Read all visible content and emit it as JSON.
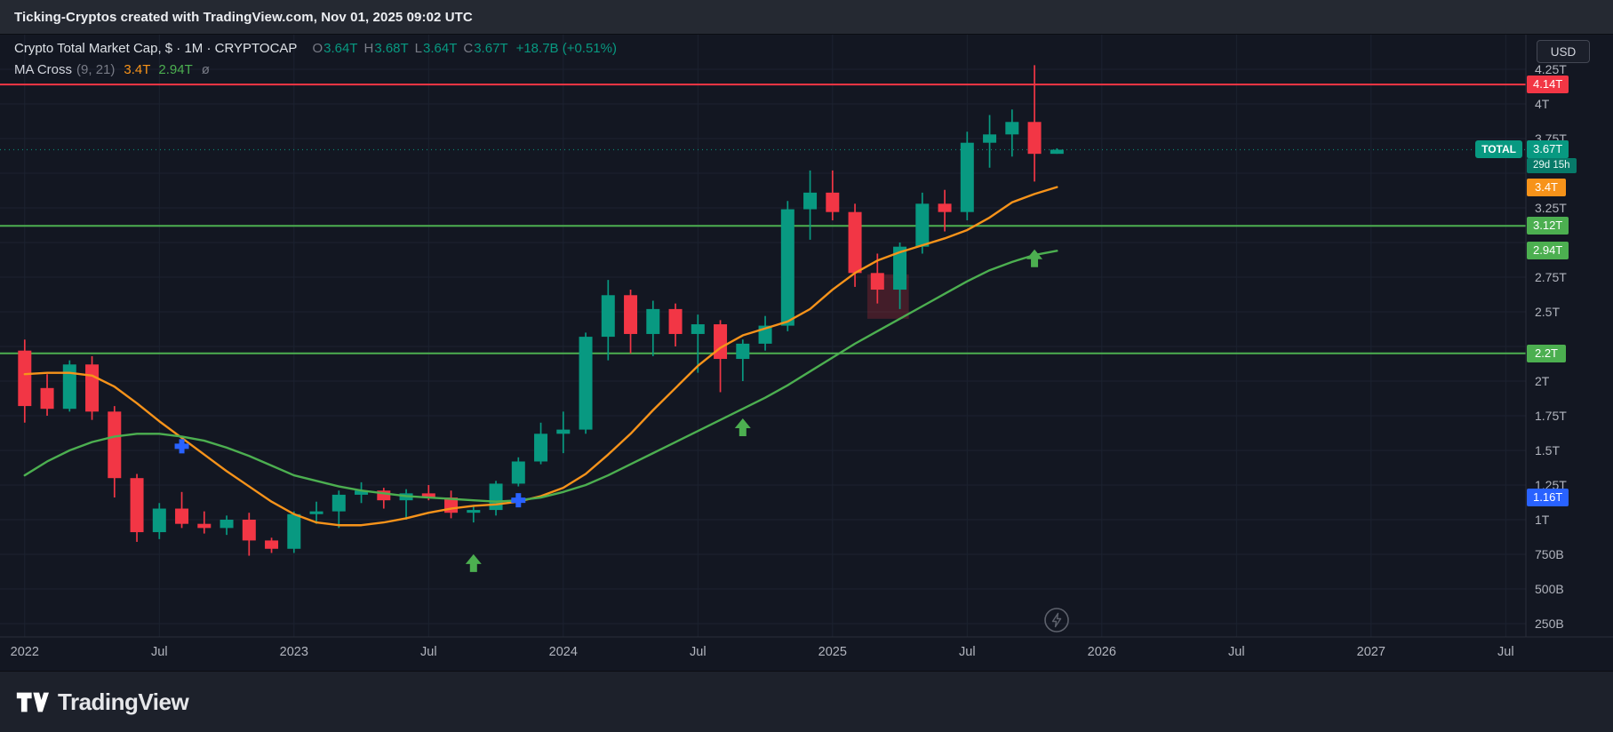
{
  "top_bar": {
    "text": "Ticking-Cryptos created with TradingView.com, Nov 01, 2025 09:02 UTC"
  },
  "bottom_bar": {
    "brand": "TradingView"
  },
  "toolbar": {
    "currency_button": "USD"
  },
  "header": {
    "title": "Crypto Total Market Cap, $ · 1M · CRYPTOCAP",
    "ohlc": {
      "o_key": "O",
      "o": "3.64T",
      "h_key": "H",
      "h": "3.68T",
      "l_key": "L",
      "l": "3.64T",
      "c_key": "C",
      "c": "3.67T",
      "change": "+18.7B (+0.51%)"
    },
    "indicator": {
      "name": "MA Cross",
      "params": "(9, 21)",
      "ma_fast": "3.4T",
      "ma_slow": "2.94T",
      "menu": "ø"
    }
  },
  "icons": {
    "bottom_left": "tradingview-logo",
    "plot_button": "lightning-bolt-icon"
  },
  "colors": {
    "background": "#131722",
    "up": "#089981",
    "down": "#f23645",
    "ma_fast": "#f7931a",
    "ma_slow": "#4caf50",
    "level_red": "#f23645",
    "level_green": "#4caf50",
    "current_price": "#089981",
    "marker_cross": "#2962ff",
    "marker_arrow": "#4caf50",
    "axis_text": "#b2b5be",
    "axis_border": "#2a2e39"
  },
  "chart_data": {
    "type": "candlestick",
    "symbol": "CRYPTOCAP TOTAL",
    "interval": "1M",
    "unit": "trillions USD",
    "ylim": [
      0.1,
      4.4
    ],
    "legend_position": "top-left",
    "candle_format": [
      "month",
      "open",
      "high",
      "low",
      "close"
    ],
    "candles": [
      [
        "2022-01",
        2.22,
        2.3,
        1.7,
        1.82
      ],
      [
        "2022-02",
        1.95,
        2.05,
        1.75,
        1.8
      ],
      [
        "2022-03",
        1.8,
        2.15,
        1.78,
        2.12
      ],
      [
        "2022-04",
        2.12,
        2.18,
        1.72,
        1.78
      ],
      [
        "2022-05",
        1.78,
        1.82,
        1.16,
        1.3
      ],
      [
        "2022-06",
        1.3,
        1.33,
        0.84,
        0.91
      ],
      [
        "2022-07",
        0.91,
        1.12,
        0.86,
        1.08
      ],
      [
        "2022-08",
        1.08,
        1.2,
        0.94,
        0.97
      ],
      [
        "2022-09",
        0.97,
        1.06,
        0.9,
        0.94
      ],
      [
        "2022-10",
        0.94,
        1.03,
        0.89,
        1.0
      ],
      [
        "2022-11",
        1.0,
        1.05,
        0.74,
        0.85
      ],
      [
        "2022-12",
        0.85,
        0.87,
        0.76,
        0.79
      ],
      [
        "2023-01",
        0.79,
        1.06,
        0.76,
        1.04
      ],
      [
        "2023-02",
        1.04,
        1.13,
        0.97,
        1.06
      ],
      [
        "2023-03",
        1.06,
        1.21,
        0.94,
        1.18
      ],
      [
        "2023-04",
        1.18,
        1.27,
        1.12,
        1.21
      ],
      [
        "2023-05",
        1.21,
        1.23,
        1.08,
        1.14
      ],
      [
        "2023-06",
        1.14,
        1.22,
        1.0,
        1.19
      ],
      [
        "2023-07",
        1.19,
        1.25,
        1.14,
        1.16
      ],
      [
        "2023-08",
        1.16,
        1.21,
        1.01,
        1.05
      ],
      [
        "2023-09",
        1.05,
        1.1,
        0.98,
        1.07
      ],
      [
        "2023-10",
        1.07,
        1.28,
        1.03,
        1.26
      ],
      [
        "2023-11",
        1.26,
        1.45,
        1.24,
        1.42
      ],
      [
        "2023-12",
        1.42,
        1.7,
        1.4,
        1.62
      ],
      [
        "2024-01",
        1.62,
        1.78,
        1.48,
        1.65
      ],
      [
        "2024-02",
        1.65,
        2.35,
        1.62,
        2.32
      ],
      [
        "2024-03",
        2.32,
        2.73,
        2.15,
        2.62
      ],
      [
        "2024-04",
        2.62,
        2.66,
        2.2,
        2.34
      ],
      [
        "2024-05",
        2.34,
        2.58,
        2.18,
        2.52
      ],
      [
        "2024-06",
        2.52,
        2.56,
        2.25,
        2.34
      ],
      [
        "2024-07",
        2.34,
        2.48,
        2.06,
        2.41
      ],
      [
        "2024-08",
        2.41,
        2.44,
        1.92,
        2.16
      ],
      [
        "2024-09",
        2.16,
        2.3,
        2.0,
        2.27
      ],
      [
        "2024-10",
        2.27,
        2.47,
        2.22,
        2.4
      ],
      [
        "2024-11",
        2.4,
        3.3,
        2.36,
        3.24
      ],
      [
        "2024-12",
        3.24,
        3.52,
        3.02,
        3.36
      ],
      [
        "2025-01",
        3.36,
        3.52,
        3.16,
        3.22
      ],
      [
        "2025-02",
        3.22,
        3.28,
        2.68,
        2.78
      ],
      [
        "2025-03",
        2.78,
        2.92,
        2.56,
        2.66
      ],
      [
        "2025-04",
        2.66,
        3.0,
        2.52,
        2.97
      ],
      [
        "2025-05",
        2.97,
        3.36,
        2.92,
        3.28
      ],
      [
        "2025-06",
        3.28,
        3.38,
        3.08,
        3.22
      ],
      [
        "2025-07",
        3.22,
        3.8,
        3.16,
        3.72
      ],
      [
        "2025-08",
        3.72,
        3.92,
        3.54,
        3.78
      ],
      [
        "2025-09",
        3.78,
        3.96,
        3.62,
        3.87
      ],
      [
        "2025-10",
        3.87,
        4.28,
        3.44,
        3.64
      ],
      [
        "2025-11",
        3.64,
        3.68,
        3.64,
        3.67
      ]
    ],
    "series": [
      {
        "name": "MA 9",
        "color": "#f7931a",
        "values": [
          2.05,
          2.06,
          2.06,
          2.04,
          1.96,
          1.84,
          1.71,
          1.59,
          1.47,
          1.35,
          1.24,
          1.13,
          1.04,
          0.98,
          0.96,
          0.96,
          0.98,
          1.01,
          1.05,
          1.08,
          1.1,
          1.11,
          1.13,
          1.17,
          1.23,
          1.33,
          1.47,
          1.62,
          1.79,
          1.95,
          2.11,
          2.24,
          2.33,
          2.38,
          2.43,
          2.52,
          2.66,
          2.78,
          2.87,
          2.93,
          2.98,
          3.03,
          3.09,
          3.18,
          3.29,
          3.35,
          3.4
        ]
      },
      {
        "name": "MA 21",
        "color": "#4caf50",
        "values": [
          1.32,
          1.42,
          1.5,
          1.56,
          1.6,
          1.62,
          1.62,
          1.6,
          1.57,
          1.52,
          1.46,
          1.39,
          1.32,
          1.28,
          1.24,
          1.21,
          1.19,
          1.17,
          1.16,
          1.15,
          1.14,
          1.13,
          1.14,
          1.16,
          1.2,
          1.25,
          1.32,
          1.4,
          1.48,
          1.56,
          1.64,
          1.72,
          1.8,
          1.88,
          1.97,
          2.07,
          2.17,
          2.27,
          2.36,
          2.45,
          2.54,
          2.63,
          2.72,
          2.8,
          2.86,
          2.91,
          2.94
        ]
      }
    ],
    "levels": [
      {
        "value": 4.14,
        "label": "4.14T",
        "color": "#f23645"
      },
      {
        "value": 3.12,
        "label": "3.12T",
        "color": "#4caf50"
      },
      {
        "value": 2.2,
        "label": "2.2T",
        "color": "#4caf50"
      }
    ],
    "zone": {
      "t_start": 37.55,
      "t_end": 39.4,
      "v_top": 2.77,
      "v_bottom": 2.45,
      "fill": "rgba(242,54,69,0.22)"
    },
    "markers": [
      {
        "type": "cross",
        "t": 7,
        "value": 1.53,
        "color": "#2962ff"
      },
      {
        "type": "cross",
        "t": 22,
        "value": 1.14,
        "color": "#2962ff"
      },
      {
        "type": "arrow_up",
        "t": 20,
        "value": 0.68,
        "color": "#4caf50"
      },
      {
        "type": "arrow_up",
        "t": 32,
        "value": 1.66,
        "color": "#4caf50"
      },
      {
        "type": "arrow_up",
        "t": 45,
        "value": 2.88,
        "color": "#4caf50"
      }
    ],
    "current": {
      "tag": "TOTAL",
      "price": "3.67T",
      "countdown": "29d 15h",
      "value": 3.67,
      "bg": "#089981",
      "countdown_bg": "#077a69"
    },
    "axis_labels": [
      {
        "text": "3.4T",
        "value": 3.4,
        "bg": "#f7931a",
        "name": "ma-fast-price-label"
      },
      {
        "text": "2.94T",
        "value": 2.94,
        "bg": "#4caf50",
        "name": "ma-slow-price-label"
      },
      {
        "text": "1.16T",
        "value": 1.16,
        "bg": "#2962ff",
        "name": "alert-price-label"
      }
    ],
    "price_ticks": [
      {
        "label": "4.25T",
        "value": 4.25
      },
      {
        "label": "4T",
        "value": 4.0
      },
      {
        "label": "3.75T",
        "value": 3.75
      },
      {
        "label": "3.25T",
        "value": 3.25
      },
      {
        "label": "2.75T",
        "value": 2.75
      },
      {
        "label": "2.5T",
        "value": 2.5
      },
      {
        "label": "2T",
        "value": 2.0
      },
      {
        "label": "1.75T",
        "value": 1.75
      },
      {
        "label": "1.5T",
        "value": 1.5
      },
      {
        "label": "1.25T",
        "value": 1.25
      },
      {
        "label": "1T",
        "value": 1.0
      },
      {
        "label": "750B",
        "value": 0.75
      },
      {
        "label": "500B",
        "value": 0.5
      },
      {
        "label": "250B",
        "value": 0.25
      }
    ],
    "time_ticks": [
      {
        "label": "2022",
        "t": 0
      },
      {
        "label": "Jul",
        "t": 6
      },
      {
        "label": "2023",
        "t": 12
      },
      {
        "label": "Jul",
        "t": 18
      },
      {
        "label": "2024",
        "t": 24
      },
      {
        "label": "Jul",
        "t": 30
      },
      {
        "label": "2025",
        "t": 36
      },
      {
        "label": "Jul",
        "t": 42
      },
      {
        "label": "2026",
        "t": 48
      },
      {
        "label": "Jul",
        "t": 54
      },
      {
        "label": "2027",
        "t": 60
      },
      {
        "label": "Jul",
        "t": 66
      }
    ],
    "grid": {
      "show": true,
      "step": 0.25,
      "min": 0.25,
      "max": 4.25,
      "color": "#1c2230"
    }
  }
}
